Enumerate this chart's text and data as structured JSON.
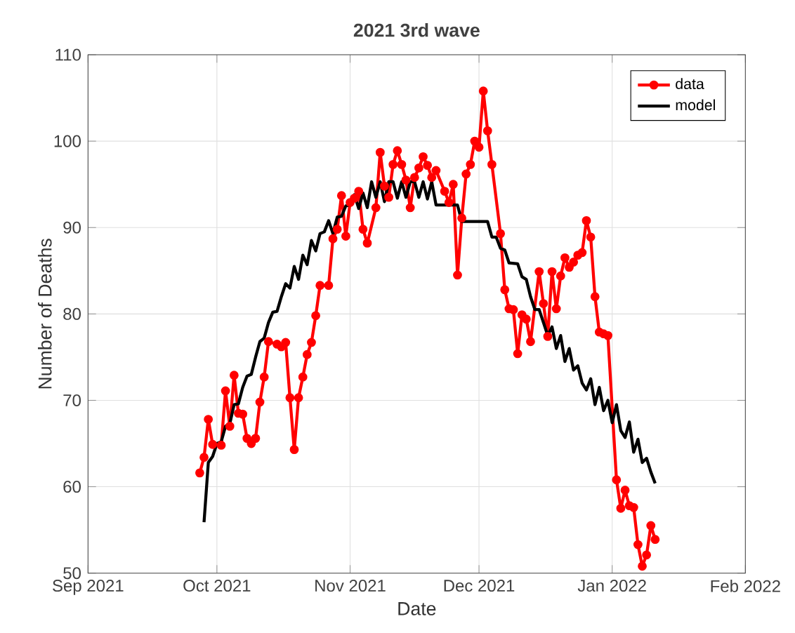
{
  "chart_data": {
    "type": "line",
    "title": "2021 3rd wave",
    "xlabel": "Date",
    "ylabel": "Number of Deaths",
    "xlim": [
      "2021-09-01",
      "2022-02-01"
    ],
    "xticks": [
      {
        "value": "2021-09-01",
        "label": "Sep 2021"
      },
      {
        "value": "2021-10-01",
        "label": "Oct 2021"
      },
      {
        "value": "2021-11-01",
        "label": "Nov 2021"
      },
      {
        "value": "2021-12-01",
        "label": "Dec 2021"
      },
      {
        "value": "2022-01-01",
        "label": "Jan 2022"
      },
      {
        "value": "2022-02-01",
        "label": "Feb 2022"
      }
    ],
    "ylim": [
      50,
      110
    ],
    "yticks": [
      50,
      60,
      70,
      80,
      90,
      100,
      110
    ],
    "grid": true,
    "legend": "top right",
    "series": [
      {
        "name": "data",
        "color": "#ff0000",
        "marker": "circle",
        "x": [
          "2021-09-27",
          "2021-09-28",
          "2021-09-29",
          "2021-09-30",
          "2021-10-02",
          "2021-10-03",
          "2021-10-04",
          "2021-10-05",
          "2021-10-06",
          "2021-10-07",
          "2021-10-08",
          "2021-10-09",
          "2021-10-10",
          "2021-10-11",
          "2021-10-12",
          "2021-10-13",
          "2021-10-15",
          "2021-10-16",
          "2021-10-17",
          "2021-10-18",
          "2021-10-19",
          "2021-10-20",
          "2021-10-21",
          "2021-10-22",
          "2021-10-23",
          "2021-10-24",
          "2021-10-25",
          "2021-10-27",
          "2021-10-28",
          "2021-10-29",
          "2021-10-30",
          "2021-10-31",
          "2021-11-01",
          "2021-11-02",
          "2021-11-03",
          "2021-11-04",
          "2021-11-05",
          "2021-11-07",
          "2021-11-08",
          "2021-11-09",
          "2021-11-10",
          "2021-11-11",
          "2021-11-12",
          "2021-11-13",
          "2021-11-14",
          "2021-11-15",
          "2021-11-16",
          "2021-11-17",
          "2021-11-18",
          "2021-11-19",
          "2021-11-20",
          "2021-11-21",
          "2021-11-23",
          "2021-11-24",
          "2021-11-25",
          "2021-11-26",
          "2021-11-27",
          "2021-11-28",
          "2021-11-29",
          "2021-11-30",
          "2021-12-01",
          "2021-12-02",
          "2021-12-03",
          "2021-12-04",
          "2021-12-06",
          "2021-12-07",
          "2021-12-08",
          "2021-12-09",
          "2021-12-10",
          "2021-12-11",
          "2021-12-12",
          "2021-12-13",
          "2021-12-15",
          "2021-12-16",
          "2021-12-17",
          "2021-12-18",
          "2021-12-19",
          "2021-12-20",
          "2021-12-21",
          "2021-12-22",
          "2021-12-23",
          "2021-12-24",
          "2021-12-25",
          "2021-12-26",
          "2021-12-27",
          "2021-12-28",
          "2021-12-29",
          "2021-12-30",
          "2021-12-31",
          "2022-01-02",
          "2022-01-03",
          "2022-01-04",
          "2022-01-05",
          "2022-01-06",
          "2022-01-07",
          "2022-01-08",
          "2022-01-09",
          "2022-01-10",
          "2022-01-11"
        ],
        "values": [
          61.6,
          63.4,
          67.8,
          64.9,
          64.8,
          71.1,
          67,
          72.9,
          68.5,
          68.4,
          65.6,
          65,
          65.6,
          69.8,
          72.7,
          76.8,
          76.5,
          76.2,
          76.7,
          70.3,
          64.3,
          70.3,
          72.7,
          75.3,
          76.7,
          79.8,
          83.3,
          83.3,
          88.7,
          89.8,
          93.7,
          89,
          92.9,
          93.4,
          94.2,
          89.8,
          88.2,
          92.3,
          98.7,
          94.8,
          93.5,
          97.3,
          98.9,
          97.3,
          95.5,
          92.3,
          95.8,
          96.9,
          98.2,
          97.2,
          95.8,
          96.6,
          94.2,
          92.9,
          95,
          84.5,
          91.1,
          96.2,
          97.3,
          100,
          99.3,
          105.8,
          101.2,
          97.3,
          89.3,
          82.8,
          80.6,
          80.5,
          75.4,
          79.9,
          79.4,
          76.8,
          84.9,
          81.2,
          77.4,
          84.9,
          80.6,
          84.4,
          86.5,
          85.4,
          86,
          86.8,
          87.1,
          90.8,
          88.9,
          82,
          77.9,
          77.7,
          77.5,
          60.8,
          57.5,
          59.6,
          57.8,
          57.6,
          53.3,
          50.8,
          52.1,
          55.5,
          53.9
        ]
      },
      {
        "name": "model",
        "color": "#000000",
        "marker": "none",
        "x": [
          "2021-09-28",
          "2021-09-29",
          "2021-09-30",
          "2021-10-01",
          "2021-10-02",
          "2021-10-03",
          "2021-10-04",
          "2021-10-05",
          "2021-10-06",
          "2021-10-07",
          "2021-10-08",
          "2021-10-09",
          "2021-10-10",
          "2021-10-11",
          "2021-10-12",
          "2021-10-13",
          "2021-10-14",
          "2021-10-15",
          "2021-10-16",
          "2021-10-17",
          "2021-10-18",
          "2021-10-19",
          "2021-10-20",
          "2021-10-21",
          "2021-10-22",
          "2021-10-23",
          "2021-10-24",
          "2021-10-25",
          "2021-10-26",
          "2021-10-27",
          "2021-10-28",
          "2021-10-29",
          "2021-10-30",
          "2021-10-31",
          "2021-11-01",
          "2021-11-02",
          "2021-11-03",
          "2021-11-04",
          "2021-11-05",
          "2021-11-06",
          "2021-11-07",
          "2021-11-08",
          "2021-11-09",
          "2021-11-10",
          "2021-11-11",
          "2021-11-12",
          "2021-11-13",
          "2021-11-14",
          "2021-11-15",
          "2021-11-16",
          "2021-11-17",
          "2021-11-18",
          "2021-11-19",
          "2021-11-20",
          "2021-11-21",
          "2021-11-26",
          "2021-11-27",
          "2021-12-03",
          "2021-12-04",
          "2021-12-05",
          "2021-12-06",
          "2021-12-07",
          "2021-12-08",
          "2021-12-10",
          "2021-12-11",
          "2021-12-12",
          "2021-12-13",
          "2021-12-14",
          "2021-12-15",
          "2021-12-16",
          "2021-12-17",
          "2021-12-18",
          "2021-12-19",
          "2021-12-20",
          "2021-12-21",
          "2021-12-22",
          "2021-12-23",
          "2021-12-24",
          "2021-12-25",
          "2021-12-26",
          "2021-12-27",
          "2021-12-28",
          "2021-12-29",
          "2021-12-30",
          "2021-12-31",
          "2022-01-01",
          "2022-01-02",
          "2022-01-03",
          "2022-01-04",
          "2022-01-05",
          "2022-01-06",
          "2022-01-07",
          "2022-01-08",
          "2022-01-09",
          "2022-01-10",
          "2022-01-11"
        ],
        "values": [
          55.9,
          62.8,
          63.5,
          65,
          65.2,
          67,
          67.3,
          69.5,
          69.6,
          71.5,
          72.8,
          73,
          75,
          76.8,
          77.2,
          79,
          80.2,
          80.3,
          82,
          83.5,
          83,
          85.5,
          84,
          86.8,
          85.7,
          88.5,
          87.3,
          89.3,
          89.5,
          90.8,
          89.3,
          91.2,
          91.3,
          92.5,
          92.6,
          93.8,
          92.2,
          94,
          92.3,
          95.3,
          93.5,
          95.3,
          93,
          95.3,
          95.3,
          93.4,
          95.3,
          93.5,
          95.3,
          95.3,
          93.5,
          95.3,
          93.3,
          95.3,
          92.6,
          92.6,
          90.7,
          90.7,
          88.9,
          88.9,
          87.6,
          87.4,
          85.9,
          85.8,
          84.3,
          84,
          82,
          80.5,
          80.5,
          79,
          77.5,
          78.5,
          76,
          77.5,
          74.5,
          76,
          73.5,
          74,
          72,
          71.2,
          72.5,
          69.5,
          71.5,
          68.8,
          70,
          67.4,
          69.5,
          66.5,
          65.7,
          67.5,
          64,
          65.5,
          62.8,
          63.3,
          61.7,
          60.4
        ]
      }
    ]
  }
}
